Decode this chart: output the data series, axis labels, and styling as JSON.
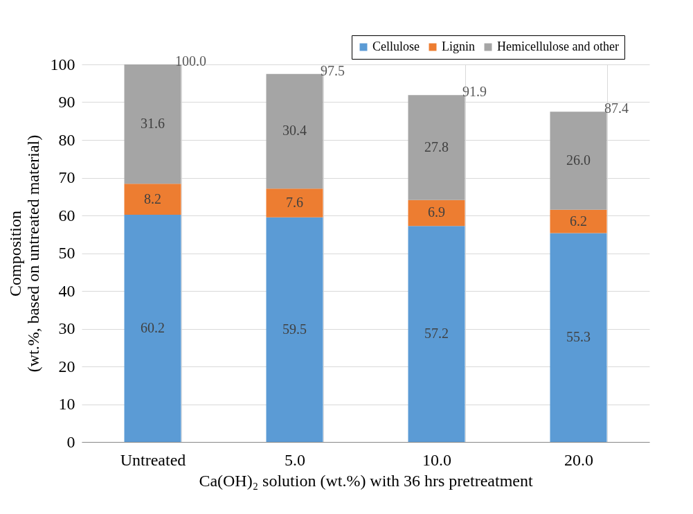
{
  "chart_data": {
    "type": "bar",
    "stacked": true,
    "xlabel": "Ca(OH)₂ solution (wt.%) with 36 hrs pretreatment",
    "ylabel": "Composition\n(wt.%, based on untreated material)",
    "categories": [
      "Untreated",
      "5.0",
      "10.0",
      "20.0"
    ],
    "series": [
      {
        "name": "Cellulose",
        "color": "#5b9bd5",
        "values": [
          60.2,
          59.5,
          57.2,
          55.3
        ],
        "value_labels": [
          "60.2",
          "59.5",
          "57.2",
          "55.3"
        ]
      },
      {
        "name": "Lignin",
        "color": "#ed7d31",
        "values": [
          8.2,
          7.6,
          6.9,
          6.2
        ],
        "value_labels": [
          "8.2",
          "7.6",
          "6.9",
          "6.2"
        ]
      },
      {
        "name": "Hemicellulose and other",
        "color": "#a5a5a5",
        "values": [
          31.6,
          30.4,
          27.8,
          26.0
        ],
        "value_labels": [
          "31.6",
          "30.4",
          "27.8",
          "26.0"
        ]
      }
    ],
    "totals": [
      "100.0",
      "97.5",
      "91.9",
      "87.4"
    ],
    "ylim": [
      0,
      100
    ],
    "yticks": [
      0,
      10,
      20,
      30,
      40,
      50,
      60,
      70,
      80,
      90,
      100
    ],
    "grid": true,
    "legend": "top right"
  }
}
